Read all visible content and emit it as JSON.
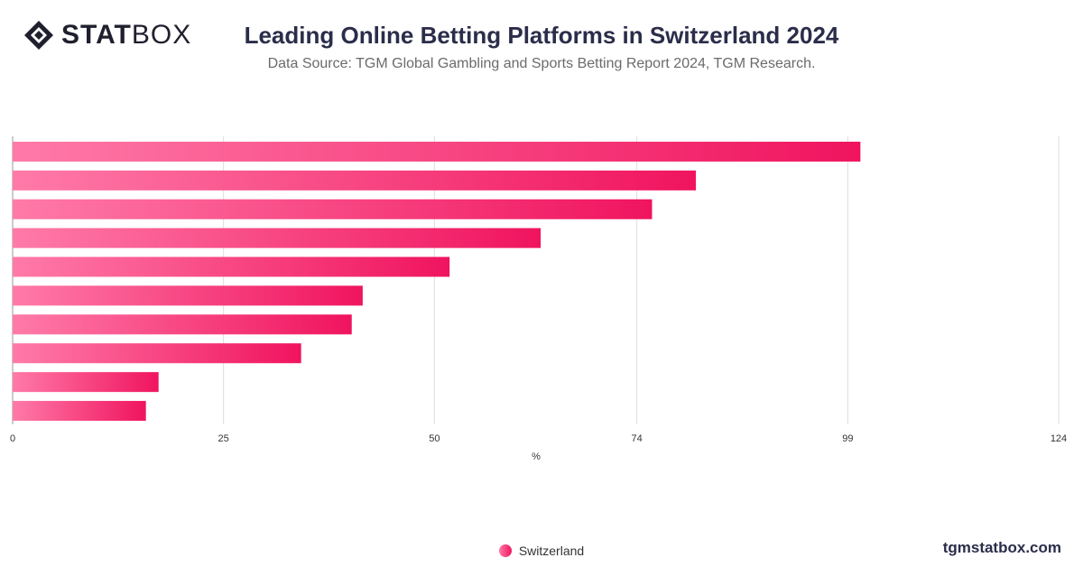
{
  "header": {
    "logo_bold": "STAT",
    "logo_light": "BOX",
    "title": "Leading Online Betting Platforms in Switzerland 2024",
    "subtitle": "Data Source: TGM Global Gambling and Sports Betting Report 2024, TGM Research."
  },
  "legend": {
    "label": "Switzerland"
  },
  "footer": {
    "site": "tgmstatbox.com"
  },
  "colors": {
    "bar_start": "#ff7aa8",
    "bar_end": "#f0145f",
    "grid": "#dddddd",
    "axis_text": "#333333"
  },
  "chart_data": {
    "type": "bar",
    "orientation": "horizontal",
    "categories": [
      "",
      "",
      "",
      "",
      "",
      "",
      "",
      "",
      "",
      ""
    ],
    "series": [
      {
        "name": "Switzerland",
        "values": [
          100.5,
          81,
          75.8,
          62.6,
          51.8,
          41.5,
          40.2,
          34.2,
          17.3,
          15.8
        ]
      }
    ],
    "xlabel": "%",
    "ylabel": "",
    "xlim": [
      0,
      124
    ],
    "xticks": [
      0,
      25,
      50,
      74,
      99,
      124
    ],
    "grid": true,
    "legend_position": "bottom"
  }
}
